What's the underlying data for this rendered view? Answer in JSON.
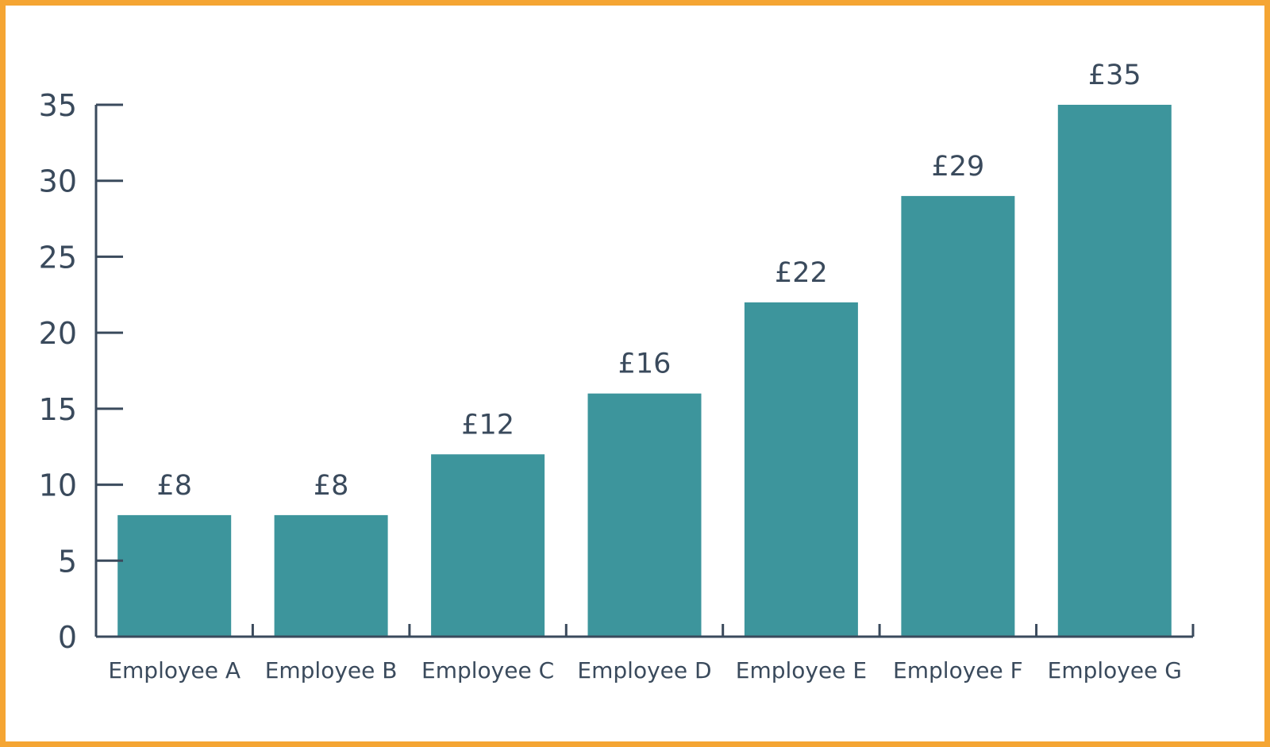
{
  "colors": {
    "frame": "#f5a533",
    "bar": "#3d959c",
    "axis": "#3a4a5c",
    "text": "#3a4a5c",
    "background": "#ffffff"
  },
  "chart_data": {
    "type": "bar",
    "categories": [
      "Employee A",
      "Employee B",
      "Employee C",
      "Employee D",
      "Employee E",
      "Employee F",
      "Employee G"
    ],
    "values": [
      8,
      8,
      12,
      16,
      22,
      29,
      35
    ],
    "data_labels": [
      "£8",
      "£8",
      "£12",
      "£16",
      "£22",
      "£29",
      "£35"
    ],
    "yticks": [
      "0",
      "5",
      "10",
      "15",
      "20",
      "25",
      "30",
      "35"
    ],
    "ylim": [
      0,
      35
    ],
    "title": "",
    "xlabel": "",
    "ylabel": "",
    "grid": false,
    "legend": "none"
  }
}
